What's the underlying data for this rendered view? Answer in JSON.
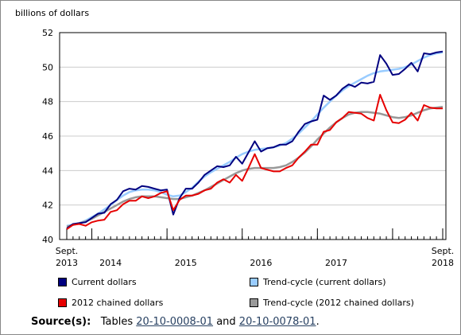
{
  "chart_data": {
    "type": "line",
    "ylabel": "billions of dollars",
    "ylim": [
      40,
      52
    ],
    "yticks": [
      40,
      42,
      44,
      46,
      48,
      50,
      52
    ],
    "x_labels": [
      {
        "text": [
          "Sept.",
          "2013"
        ],
        "index": 0
      },
      {
        "text": [
          "2014"
        ],
        "index": 7
      },
      {
        "text": [
          "2015"
        ],
        "index": 19
      },
      {
        "text": [
          "2016"
        ],
        "index": 31
      },
      {
        "text": [
          "2017"
        ],
        "index": 43
      },
      {
        "text": [
          "Sept.",
          "2018"
        ],
        "index": 60
      }
    ],
    "year_ticks": [
      0,
      4,
      16,
      28,
      40,
      52,
      60
    ],
    "start_month": "2013-09",
    "end_month": "2018-09",
    "series": [
      {
        "name": "Current dollars",
        "color": "#000080",
        "values": [
          40.65,
          40.9,
          40.95,
          41.0,
          41.25,
          41.5,
          41.55,
          42.05,
          42.3,
          42.8,
          42.95,
          42.9,
          43.1,
          43.05,
          42.95,
          42.85,
          42.9,
          41.45,
          42.4,
          42.95,
          42.95,
          43.3,
          43.75,
          44.0,
          44.25,
          44.2,
          44.3,
          44.8,
          44.4,
          45.05,
          45.7,
          45.1,
          45.3,
          45.35,
          45.5,
          45.5,
          45.7,
          46.25,
          46.7,
          46.85,
          46.95,
          48.35,
          48.1,
          48.35,
          48.75,
          49.0,
          48.85,
          49.1,
          49.05,
          49.15,
          50.7,
          50.2,
          49.55,
          49.6,
          49.9,
          50.25,
          49.75,
          50.8,
          50.75,
          50.85,
          50.9
        ]
      },
      {
        "name": "Trend-cycle (current dollars)",
        "color": "#99ccff",
        "values": [
          40.8,
          40.85,
          40.95,
          41.1,
          41.3,
          41.5,
          41.75,
          42.0,
          42.3,
          42.55,
          42.75,
          42.85,
          42.9,
          42.9,
          42.85,
          42.75,
          42.6,
          42.5,
          42.55,
          42.75,
          43.0,
          43.35,
          43.65,
          43.9,
          44.1,
          44.3,
          44.5,
          44.75,
          44.95,
          45.1,
          45.2,
          45.25,
          45.3,
          45.35,
          45.45,
          45.6,
          45.85,
          46.15,
          46.5,
          46.85,
          47.25,
          47.65,
          48.0,
          48.35,
          48.65,
          48.9,
          49.1,
          49.3,
          49.5,
          49.65,
          49.75,
          49.8,
          49.85,
          49.9,
          50.0,
          50.15,
          50.35,
          50.55,
          50.7,
          50.8,
          50.85
        ]
      },
      {
        "name": "2012 chained dollars",
        "color": "#e60000",
        "values": [
          40.6,
          40.85,
          40.9,
          40.8,
          41.0,
          41.1,
          41.15,
          41.6,
          41.7,
          42.05,
          42.25,
          42.25,
          42.5,
          42.4,
          42.5,
          42.7,
          42.8,
          41.7,
          42.3,
          42.55,
          42.55,
          42.65,
          42.85,
          42.95,
          43.3,
          43.5,
          43.3,
          43.75,
          43.4,
          44.15,
          44.95,
          44.15,
          44.05,
          43.95,
          43.95,
          44.15,
          44.3,
          44.75,
          45.1,
          45.5,
          45.5,
          46.25,
          46.35,
          46.8,
          47.05,
          47.4,
          47.35,
          47.3,
          47.05,
          46.9,
          48.4,
          47.5,
          46.8,
          46.75,
          46.95,
          47.35,
          46.9,
          47.8,
          47.65,
          47.6,
          47.6
        ]
      },
      {
        "name": "Trend-cycle (2012 chained dollars)",
        "color": "#999999",
        "values": [
          40.75,
          40.85,
          40.95,
          41.05,
          41.2,
          41.4,
          41.6,
          41.8,
          42.0,
          42.2,
          42.35,
          42.45,
          42.5,
          42.5,
          42.5,
          42.45,
          42.4,
          42.35,
          42.35,
          42.45,
          42.55,
          42.7,
          42.85,
          43.05,
          43.25,
          43.45,
          43.65,
          43.85,
          44.0,
          44.1,
          44.15,
          44.15,
          44.15,
          44.15,
          44.2,
          44.3,
          44.5,
          44.75,
          45.05,
          45.4,
          45.8,
          46.15,
          46.5,
          46.8,
          47.05,
          47.25,
          47.35,
          47.4,
          47.4,
          47.35,
          47.3,
          47.2,
          47.1,
          47.05,
          47.1,
          47.2,
          47.35,
          47.5,
          47.6,
          47.65,
          47.7
        ]
      }
    ]
  },
  "legend": {
    "items": [
      {
        "label": "Current dollars",
        "color": "#000080"
      },
      {
        "label": "Trend-cycle (current dollars)",
        "color": "#99ccff"
      },
      {
        "label": "2012 chained dollars",
        "color": "#e60000"
      },
      {
        "label": "Trend-cycle (2012 chained dollars)",
        "color": "#999999"
      }
    ]
  },
  "source": {
    "label": "Source(s):",
    "prefix": "Tables",
    "link1": "20-10-0008-01",
    "middle": "and",
    "link2": "20-10-0078-01",
    "suffix": "."
  }
}
